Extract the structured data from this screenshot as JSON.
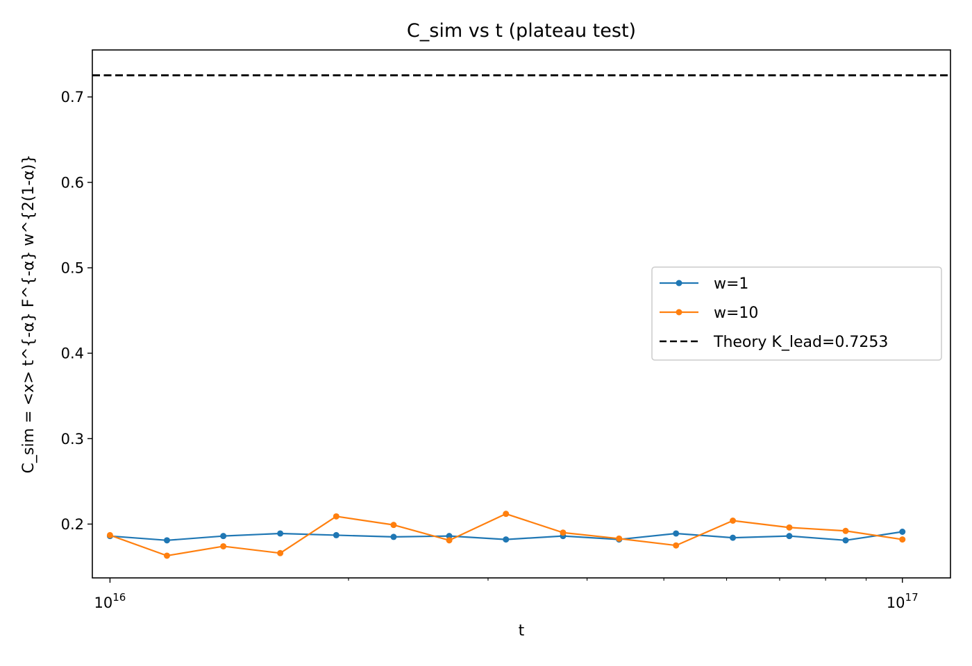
{
  "chart_data": {
    "type": "line",
    "title": "C_sim vs t (plateau test)",
    "xlabel": "t",
    "ylabel": "C_sim = <x> t^{-α} F^{-α} w^{2(1-α)}",
    "xscale": "log",
    "xlim": [
      9500000000000000.0,
      1.15e+17
    ],
    "ylim": [
      0.137,
      0.755
    ],
    "grid": false,
    "legend_position": "center-right",
    "x_major_ticks": [
      {
        "value": 1e+16,
        "base": "10",
        "exp": "16"
      },
      {
        "value": 1e+17,
        "base": "10",
        "exp": "17"
      }
    ],
    "x_minor_ticks": [
      2e+16,
      3e+16,
      4e+16,
      5e+16,
      6e+16,
      7e+16,
      8e+16,
      9e+16,
      2e+17
    ],
    "y_ticks": [
      {
        "value": 0.2,
        "label": "0.2"
      },
      {
        "value": 0.3,
        "label": "0.3"
      },
      {
        "value": 0.4,
        "label": "0.4"
      },
      {
        "value": 0.5,
        "label": "0.5"
      },
      {
        "value": 0.6,
        "label": "0.6"
      },
      {
        "value": 0.7,
        "label": "0.7"
      }
    ],
    "x": [
      1e+16,
      1.18e+16,
      1.39e+16,
      1.64e+16,
      1.93e+16,
      2.28e+16,
      2.68e+16,
      3.16e+16,
      3.73e+16,
      4.39e+16,
      5.18e+16,
      6.11e+16,
      7.2e+16,
      8.48e+16,
      1e+17
    ],
    "series": [
      {
        "name": "w=1",
        "color": "#1f77b4",
        "values": [
          0.186,
          0.181,
          0.186,
          0.189,
          0.187,
          0.185,
          0.186,
          0.182,
          0.186,
          0.182,
          0.189,
          0.184,
          0.186,
          0.181,
          0.191
        ]
      },
      {
        "name": "w=10",
        "color": "#ff7f0e",
        "values": [
          0.187,
          0.163,
          0.174,
          0.166,
          0.209,
          0.199,
          0.181,
          0.212,
          0.19,
          0.183,
          0.175,
          0.204,
          0.196,
          0.192,
          0.182
        ]
      }
    ],
    "reference_line": {
      "name": "Theory K_lead=0.7253",
      "value": 0.7253,
      "color": "#000000",
      "style": "dashed"
    }
  }
}
